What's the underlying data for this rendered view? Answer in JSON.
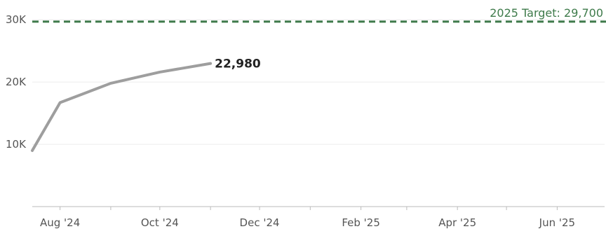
{
  "chart_data": {
    "type": "line",
    "x_ticks": [
      "Aug '24",
      "Oct '24",
      "Dec '24",
      "Feb '25",
      "Apr '25",
      "Jun '25"
    ],
    "y_ticks": [
      "10K",
      "20K",
      "30K"
    ],
    "y_tick_values": [
      10000,
      20000,
      30000
    ],
    "ylim": [
      0,
      32500
    ],
    "xlim": [
      "2024-07-15",
      "2025-06-30"
    ],
    "grid": true,
    "series": [
      {
        "x": [
          "2024-07-15",
          "2024-08-01",
          "2024-09-01",
          "2024-10-01",
          "2024-11-01"
        ],
        "values": [
          9000,
          16700,
          19800,
          21600,
          22980
        ]
      }
    ],
    "end_label": "22,980",
    "reference_line": {
      "value": 29700,
      "label": "2025 Target: 29,700"
    },
    "colors": {
      "line": "#9e9e9e",
      "target": "#3e7a4a",
      "grid": "#ececec",
      "axis": "#bbbbbb"
    }
  }
}
